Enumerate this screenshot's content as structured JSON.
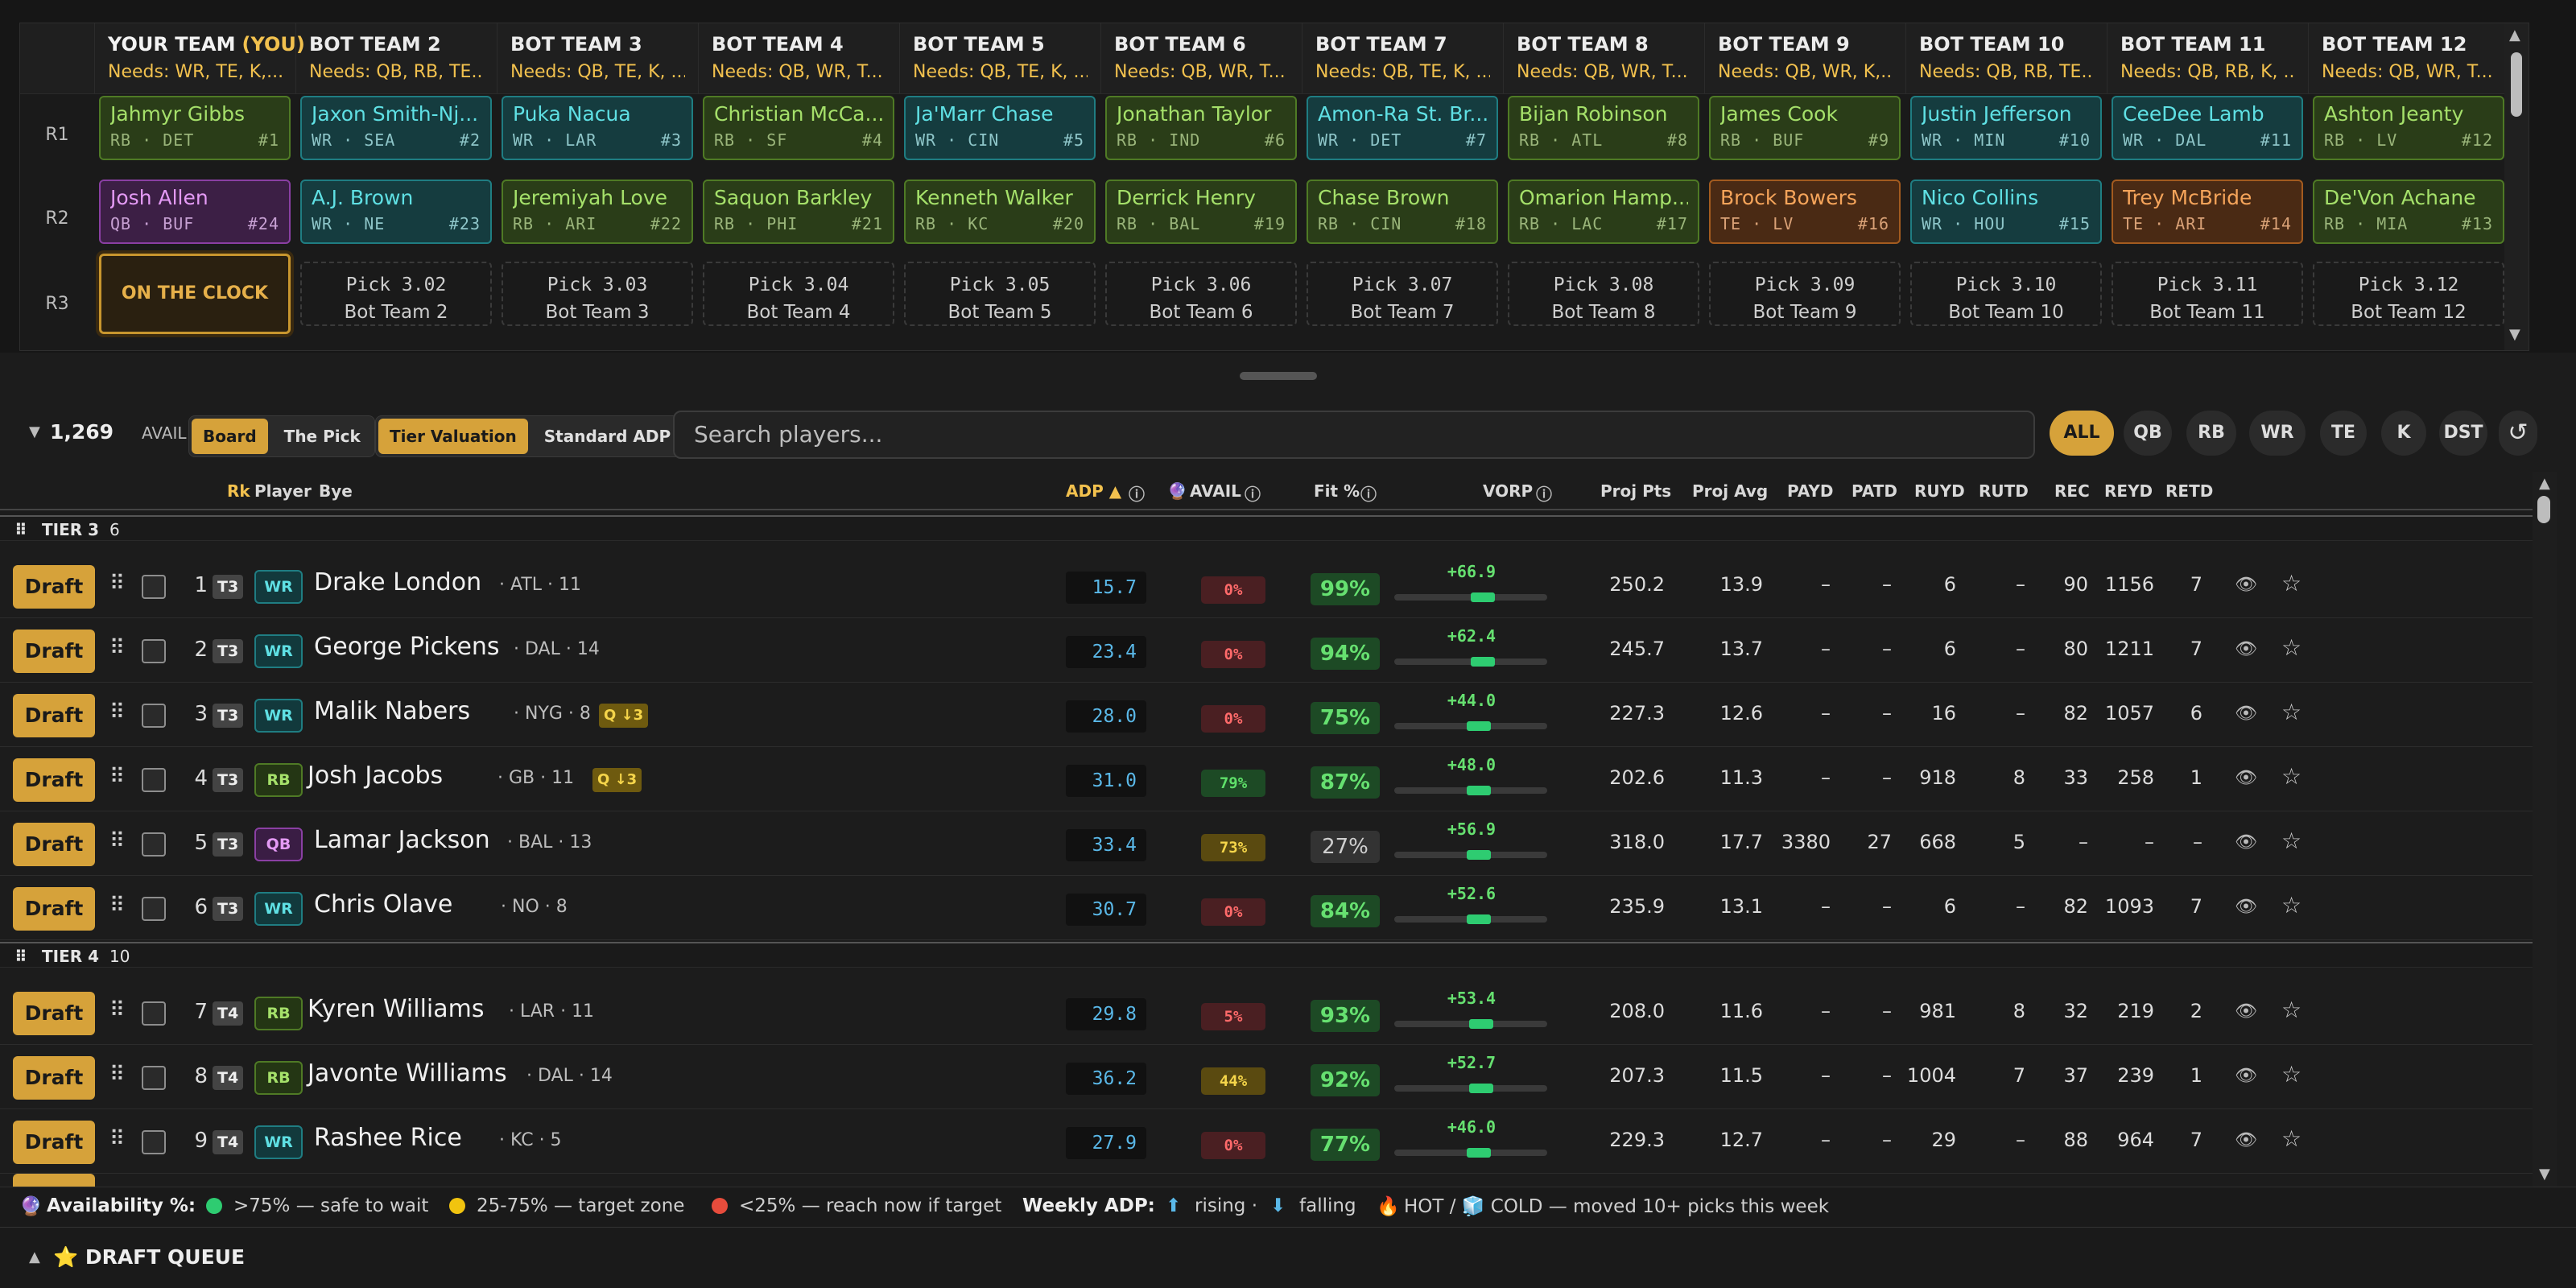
{
  "teams": [
    {
      "name": "YOUR TEAM",
      "tag": "(YOU)",
      "needs": "Needs: WR, TE, K,..."
    },
    {
      "name": "BOT TEAM 2",
      "needs": "Needs: QB, RB, TE..."
    },
    {
      "name": "BOT TEAM 3",
      "needs": "Needs: QB, TE, K, ..."
    },
    {
      "name": "BOT TEAM 4",
      "needs": "Needs: QB, WR, T..."
    },
    {
      "name": "BOT TEAM 5",
      "needs": "Needs: QB, TE, K, ..."
    },
    {
      "name": "BOT TEAM 6",
      "needs": "Needs: QB, WR, T..."
    },
    {
      "name": "BOT TEAM 7",
      "needs": "Needs: QB, TE, K, ..."
    },
    {
      "name": "BOT TEAM 8",
      "needs": "Needs: QB, WR, T..."
    },
    {
      "name": "BOT TEAM 9",
      "needs": "Needs: QB, WR, K,..."
    },
    {
      "name": "BOT TEAM 10",
      "needs": "Needs: QB, RB, TE..."
    },
    {
      "name": "BOT TEAM 11",
      "needs": "Needs: QB, RB, K, ..."
    },
    {
      "name": "BOT TEAM 12",
      "needs": "Needs: QB, WR, T..."
    }
  ],
  "rounds": [
    "R1",
    "R2",
    "R3"
  ],
  "r1": [
    {
      "name": "Jahmyr Gibbs",
      "pos": "RB",
      "team": "DET",
      "pick": "#1",
      "cls": "rb"
    },
    {
      "name": "Jaxon Smith-Nj...",
      "pos": "WR",
      "team": "SEA",
      "pick": "#2",
      "cls": "wr"
    },
    {
      "name": "Puka Nacua",
      "pos": "WR",
      "team": "LAR",
      "pick": "#3",
      "cls": "wr"
    },
    {
      "name": "Christian McCa...",
      "pos": "RB",
      "team": "SF",
      "pick": "#4",
      "cls": "rb"
    },
    {
      "name": "Ja'Marr Chase",
      "pos": "WR",
      "team": "CIN",
      "pick": "#5",
      "cls": "wr"
    },
    {
      "name": "Jonathan Taylor",
      "pos": "RB",
      "team": "IND",
      "pick": "#6",
      "cls": "rb"
    },
    {
      "name": "Amon-Ra St. Br...",
      "pos": "WR",
      "team": "DET",
      "pick": "#7",
      "cls": "wr"
    },
    {
      "name": "Bijan Robinson",
      "pos": "RB",
      "team": "ATL",
      "pick": "#8",
      "cls": "rb"
    },
    {
      "name": "James Cook",
      "pos": "RB",
      "team": "BUF",
      "pick": "#9",
      "cls": "rb"
    },
    {
      "name": "Justin Jefferson",
      "pos": "WR",
      "team": "MIN",
      "pick": "#10",
      "cls": "wr"
    },
    {
      "name": "CeeDee Lamb",
      "pos": "WR",
      "team": "DAL",
      "pick": "#11",
      "cls": "wr"
    },
    {
      "name": "Ashton Jeanty",
      "pos": "RB",
      "team": "LV",
      "pick": "#12",
      "cls": "rb"
    }
  ],
  "r2": [
    {
      "name": "Josh Allen",
      "pos": "QB",
      "team": "BUF",
      "pick": "#24",
      "cls": "qb"
    },
    {
      "name": "A.J. Brown",
      "pos": "WR",
      "team": "NE",
      "pick": "#23",
      "cls": "wr"
    },
    {
      "name": "Jeremiyah Love",
      "pos": "RB",
      "team": "ARI",
      "pick": "#22",
      "cls": "rb"
    },
    {
      "name": "Saquon Barkley",
      "pos": "RB",
      "team": "PHI",
      "pick": "#21",
      "cls": "rb"
    },
    {
      "name": "Kenneth Walker",
      "pos": "RB",
      "team": "KC",
      "pick": "#20",
      "cls": "rb"
    },
    {
      "name": "Derrick Henry",
      "pos": "RB",
      "team": "BAL",
      "pick": "#19",
      "cls": "rb"
    },
    {
      "name": "Chase Brown",
      "pos": "RB",
      "team": "CIN",
      "pick": "#18",
      "cls": "rb"
    },
    {
      "name": "Omarion Hamp...",
      "pos": "RB",
      "team": "LAC",
      "pick": "#17",
      "cls": "rb"
    },
    {
      "name": "Brock Bowers",
      "pos": "TE",
      "team": "LV",
      "pick": "#16",
      "cls": "te"
    },
    {
      "name": "Nico Collins",
      "pos": "WR",
      "team": "HOU",
      "pick": "#15",
      "cls": "wr"
    },
    {
      "name": "Trey McBride",
      "pos": "TE",
      "team": "ARI",
      "pick": "#14",
      "cls": "te"
    },
    {
      "name": "De'Von Achane",
      "pos": "RB",
      "team": "MIA",
      "pick": "#13",
      "cls": "rb"
    }
  ],
  "clock_label": "ON THE CLOCK",
  "r3": [
    {
      "pick": "Pick 3.02",
      "team": "Bot Team 2"
    },
    {
      "pick": "Pick 3.03",
      "team": "Bot Team 3"
    },
    {
      "pick": "Pick 3.04",
      "team": "Bot Team 4"
    },
    {
      "pick": "Pick 3.05",
      "team": "Bot Team 5"
    },
    {
      "pick": "Pick 3.06",
      "team": "Bot Team 6"
    },
    {
      "pick": "Pick 3.07",
      "team": "Bot Team 7"
    },
    {
      "pick": "Pick 3.08",
      "team": "Bot Team 8"
    },
    {
      "pick": "Pick 3.09",
      "team": "Bot Team 9"
    },
    {
      "pick": "Pick 3.10",
      "team": "Bot Team 10"
    },
    {
      "pick": "Pick 3.11",
      "team": "Bot Team 11"
    },
    {
      "pick": "Pick 3.12",
      "team": "Bot Team 12"
    }
  ],
  "controls": {
    "avail_count": "1,269",
    "avail_label": "AVAIL",
    "board": "Board",
    "the_pick": "The Pick",
    "tier_valuation": "Tier Valuation",
    "standard_adp": "Standard ADP",
    "search_placeholder": "Search players...",
    "filters": [
      "ALL",
      "QB",
      "RB",
      "WR",
      "TE",
      "K",
      "DST"
    ]
  },
  "columns": {
    "rk": "Rk",
    "player": "Player",
    "bye": "Bye",
    "adp": "ADP ▲",
    "avail": "AVAIL",
    "fit": "Fit %",
    "vorp": "VORP",
    "proj_pts": "Proj Pts",
    "proj_avg": "Proj Avg",
    "payd": "PAYD",
    "patd": "PATD",
    "ruyd": "RUYD",
    "rutd": "RUTD",
    "rec": "REC",
    "reyd": "REYD",
    "retd": "RETD"
  },
  "tiers": [
    {
      "label": "TIER 3",
      "count": "6"
    },
    {
      "label": "TIER 4",
      "count": "10"
    }
  ],
  "draft_label": "Draft",
  "players": [
    {
      "rk": "1",
      "tier": "T3",
      "pos": "WR",
      "name": "Drake London",
      "team": "· ATL · 11",
      "tag": "",
      "adp": "15.7",
      "avail": "0%",
      "avail_lvl": 0.0,
      "fit": "99%",
      "vorp": "+66.9",
      "vorp_pos": 0.58,
      "pts": "250.2",
      "avg": "13.9",
      "payd": "–",
      "patd": "–",
      "ruyd": "6",
      "rutd": "–",
      "rec": "90",
      "reyd": "1156",
      "retd": "7"
    },
    {
      "rk": "2",
      "tier": "T3",
      "pos": "WR",
      "name": "George Pickens",
      "team": "· DAL · 14",
      "tag": "",
      "adp": "23.4",
      "avail": "0%",
      "avail_lvl": 0.0,
      "fit": "94%",
      "vorp": "+62.4",
      "vorp_pos": 0.58,
      "pts": "245.7",
      "avg": "13.7",
      "payd": "–",
      "patd": "–",
      "ruyd": "6",
      "rutd": "–",
      "rec": "80",
      "reyd": "1211",
      "retd": "7"
    },
    {
      "rk": "3",
      "tier": "T3",
      "pos": "WR",
      "name": "Malik Nabers",
      "team": "· NYG · 8",
      "tag": "Q ↓3",
      "adp": "28.0",
      "avail": "0%",
      "avail_lvl": 0.0,
      "fit": "75%",
      "vorp": "+44.0",
      "vorp_pos": 0.55,
      "pts": "227.3",
      "avg": "12.6",
      "payd": "–",
      "patd": "–",
      "ruyd": "16",
      "rutd": "–",
      "rec": "82",
      "reyd": "1057",
      "retd": "6"
    },
    {
      "rk": "4",
      "tier": "T3",
      "pos": "RB",
      "name": "Josh Jacobs",
      "team": "· GB · 11",
      "tag": "Q ↓3",
      "adp": "31.0",
      "avail": "79%",
      "avail_lvl": 0.79,
      "fit": "87%",
      "vorp": "+48.0",
      "vorp_pos": 0.55,
      "pts": "202.6",
      "avg": "11.3",
      "payd": "–",
      "patd": "–",
      "ruyd": "918",
      "rutd": "8",
      "rec": "33",
      "reyd": "258",
      "retd": "1"
    },
    {
      "rk": "5",
      "tier": "T3",
      "pos": "QB",
      "name": "Lamar Jackson",
      "team": "· BAL · 13",
      "tag": "",
      "adp": "33.4",
      "avail": "73%",
      "avail_lvl": 0.73,
      "fit": "27%",
      "vorp": "+56.9",
      "vorp_pos": 0.55,
      "pts": "318.0",
      "avg": "17.7",
      "payd": "3380",
      "patd": "27",
      "ruyd": "668",
      "rutd": "5",
      "rec": "–",
      "reyd": "–",
      "retd": "–"
    },
    {
      "rk": "6",
      "tier": "T3",
      "pos": "WR",
      "name": "Chris Olave",
      "team": "· NO · 8",
      "tag": "",
      "adp": "30.7",
      "avail": "0%",
      "avail_lvl": 0.0,
      "fit": "84%",
      "vorp": "+52.6",
      "vorp_pos": 0.55,
      "pts": "235.9",
      "avg": "13.1",
      "payd": "–",
      "patd": "–",
      "ruyd": "6",
      "rutd": "–",
      "rec": "82",
      "reyd": "1093",
      "retd": "7"
    },
    {
      "rk": "7",
      "tier": "T4",
      "pos": "RB",
      "name": "Kyren Williams",
      "team": "· LAR · 11",
      "tag": "",
      "adp": "29.8",
      "avail": "5%",
      "avail_lvl": 0.05,
      "fit": "93%",
      "vorp": "+53.4",
      "vorp_pos": 0.57,
      "pts": "208.0",
      "avg": "11.6",
      "payd": "–",
      "patd": "–",
      "ruyd": "981",
      "rutd": "8",
      "rec": "32",
      "reyd": "219",
      "retd": "2"
    },
    {
      "rk": "8",
      "tier": "T4",
      "pos": "RB",
      "name": "Javonte Williams",
      "team": "· DAL · 14",
      "tag": "",
      "adp": "36.2",
      "avail": "44%",
      "avail_lvl": 0.44,
      "fit": "92%",
      "vorp": "+52.7",
      "vorp_pos": 0.57,
      "pts": "207.3",
      "avg": "11.5",
      "payd": "–",
      "patd": "–",
      "ruyd": "1004",
      "rutd": "7",
      "rec": "37",
      "reyd": "239",
      "retd": "1"
    },
    {
      "rk": "9",
      "tier": "T4",
      "pos": "WR",
      "name": "Rashee Rice",
      "team": "· KC · 5",
      "tag": "",
      "adp": "27.9",
      "avail": "0%",
      "avail_lvl": 0.0,
      "fit": "77%",
      "vorp": "+46.0",
      "vorp_pos": 0.55,
      "pts": "229.3",
      "avg": "12.7",
      "payd": "–",
      "patd": "–",
      "ruyd": "29",
      "rutd": "–",
      "rec": "88",
      "reyd": "964",
      "retd": "7"
    }
  ],
  "legend": {
    "title": "Availability %:",
    "safe": ">75% — safe to wait",
    "target": "25-75% — target zone",
    "reach": "<25% — reach now if target",
    "weekly": "Weekly ADP:",
    "rising": "rising ·",
    "falling": "falling",
    "hotcold": "HOT / 🧊 COLD — moved 10+ picks this week"
  },
  "queue_label": "⭐ DRAFT QUEUE"
}
